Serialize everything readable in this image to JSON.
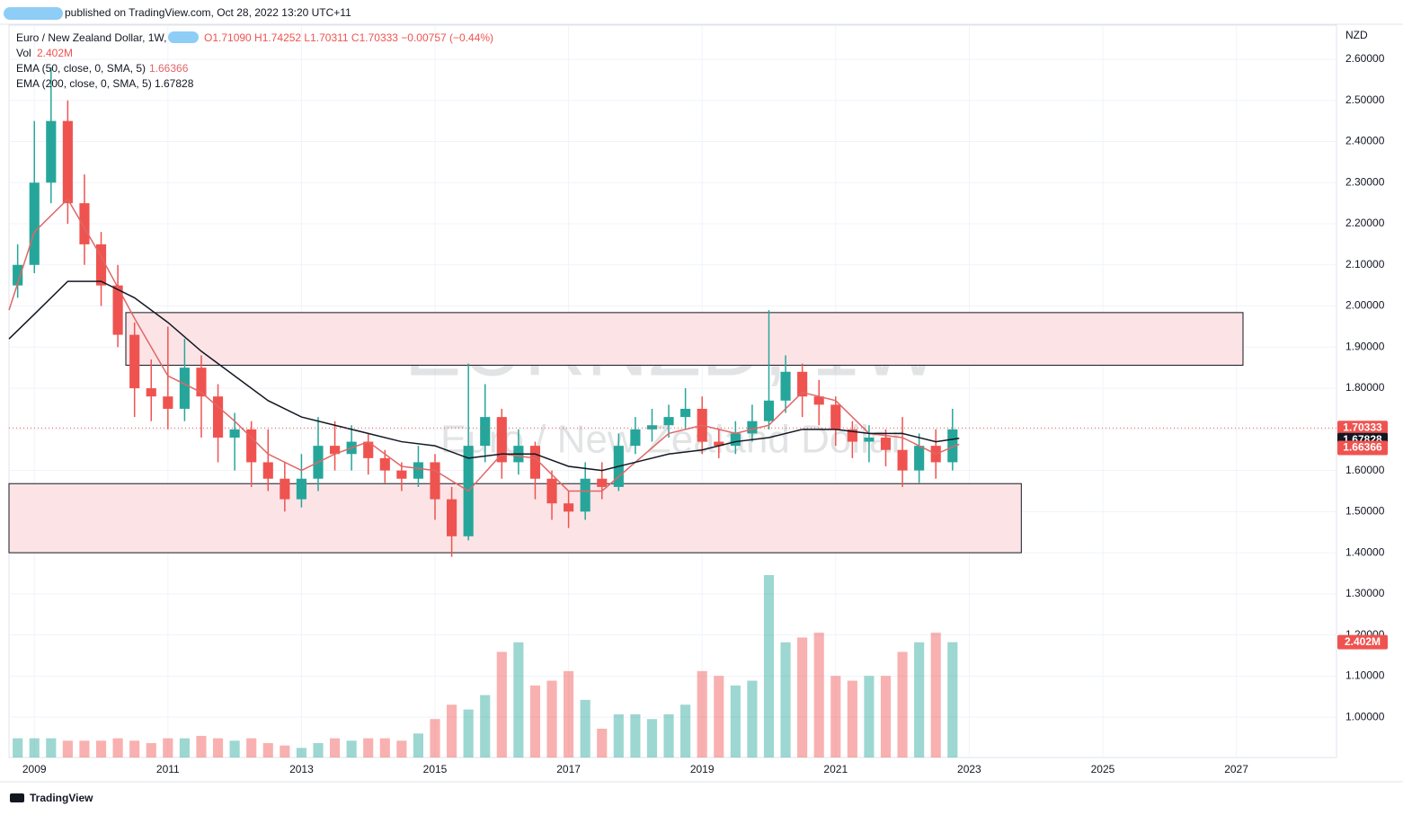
{
  "header": {
    "published": "published on TradingView.com, Oct 28, 2022 13:20 UTC+11",
    "symbol": "Euro / New Zealand Dollar, 1W,",
    "ohlc": "O1.71090 H1.74252 L1.70311 C1.70333 −0.00757 (−0.44%)",
    "vol_label": "Vol",
    "vol_value": "2.402M",
    "ema50_value": "1.66366",
    "ema200_value": "1.67828"
  },
  "watermark": {
    "symbol": "EURNZD, 1W",
    "name": "Euro / New Zealand Dollar"
  },
  "footer": "TradingView",
  "chart_data": {
    "type": "candlestick",
    "currency": "NZD",
    "up_color": "#26a69a",
    "down_color": "#ef5350",
    "x": [
      2008.75,
      2009,
      2009.25,
      2009.5,
      2009.75,
      2010,
      2010.25,
      2010.5,
      2010.75,
      2011,
      2011.25,
      2011.5,
      2011.75,
      2012,
      2012.25,
      2012.5,
      2012.75,
      2013,
      2013.25,
      2013.5,
      2013.75,
      2014,
      2014.25,
      2014.5,
      2014.75,
      2015,
      2015.25,
      2015.5,
      2015.75,
      2016,
      2016.25,
      2016.5,
      2016.75,
      2017,
      2017.25,
      2017.5,
      2017.75,
      2018,
      2018.25,
      2018.5,
      2018.75,
      2019,
      2019.25,
      2019.5,
      2019.75,
      2020,
      2020.25,
      2020.5,
      2020.75,
      2021,
      2021.25,
      2021.5,
      2021.75,
      2022,
      2022.25,
      2022.5,
      2022.75
    ],
    "open": [
      2.05,
      2.1,
      2.3,
      2.45,
      2.25,
      2.15,
      2.05,
      1.93,
      1.8,
      1.78,
      1.75,
      1.85,
      1.78,
      1.68,
      1.7,
      1.62,
      1.58,
      1.53,
      1.58,
      1.66,
      1.64,
      1.67,
      1.63,
      1.6,
      1.58,
      1.62,
      1.53,
      1.44,
      1.66,
      1.73,
      1.62,
      1.66,
      1.58,
      1.52,
      1.5,
      1.58,
      1.56,
      1.66,
      1.7,
      1.71,
      1.73,
      1.75,
      1.67,
      1.66,
      1.69,
      1.72,
      1.77,
      1.84,
      1.78,
      1.76,
      1.7,
      1.67,
      1.68,
      1.65,
      1.6,
      1.66,
      1.62
    ],
    "high": [
      2.15,
      2.45,
      2.58,
      2.5,
      2.32,
      2.18,
      2.1,
      1.96,
      1.87,
      1.95,
      1.92,
      1.88,
      1.81,
      1.74,
      1.72,
      1.7,
      1.62,
      1.64,
      1.73,
      1.72,
      1.71,
      1.69,
      1.65,
      1.62,
      1.66,
      1.64,
      1.56,
      1.86,
      1.81,
      1.75,
      1.7,
      1.67,
      1.6,
      1.55,
      1.62,
      1.62,
      1.69,
      1.73,
      1.75,
      1.76,
      1.8,
      1.78,
      1.7,
      1.72,
      1.76,
      1.99,
      1.88,
      1.86,
      1.82,
      1.78,
      1.72,
      1.71,
      1.7,
      1.73,
      1.69,
      1.7,
      1.75
    ],
    "low": [
      2.02,
      2.08,
      2.25,
      2.2,
      2.1,
      2.0,
      1.9,
      1.73,
      1.72,
      1.7,
      1.72,
      1.68,
      1.62,
      1.6,
      1.56,
      1.55,
      1.5,
      1.51,
      1.55,
      1.6,
      1.6,
      1.59,
      1.57,
      1.55,
      1.56,
      1.48,
      1.39,
      1.43,
      1.62,
      1.58,
      1.59,
      1.53,
      1.48,
      1.46,
      1.48,
      1.53,
      1.55,
      1.64,
      1.67,
      1.68,
      1.7,
      1.64,
      1.63,
      1.64,
      1.67,
      1.7,
      1.74,
      1.73,
      1.71,
      1.66,
      1.63,
      1.62,
      1.61,
      1.56,
      1.57,
      1.58,
      1.6
    ],
    "close": [
      2.1,
      2.3,
      2.45,
      2.25,
      2.15,
      2.05,
      1.93,
      1.8,
      1.78,
      1.75,
      1.85,
      1.78,
      1.68,
      1.7,
      1.62,
      1.58,
      1.53,
      1.58,
      1.66,
      1.64,
      1.67,
      1.63,
      1.6,
      1.58,
      1.62,
      1.53,
      1.44,
      1.66,
      1.73,
      1.62,
      1.66,
      1.58,
      1.52,
      1.5,
      1.58,
      1.56,
      1.66,
      1.7,
      1.71,
      1.73,
      1.75,
      1.67,
      1.66,
      1.69,
      1.72,
      1.77,
      1.84,
      1.78,
      1.76,
      1.7,
      1.67,
      1.68,
      1.65,
      1.6,
      1.66,
      1.62,
      1.7
    ],
    "series": [
      {
        "name": "EMA (50, close, 0, SMA, 5)",
        "color": "#e06666",
        "x": [
          2008.62,
          2009,
          2009.5,
          2010,
          2010.5,
          2011,
          2011.5,
          2012,
          2012.5,
          2013,
          2013.5,
          2014,
          2014.5,
          2015,
          2015.5,
          2016,
          2016.5,
          2017,
          2017.5,
          2018,
          2018.5,
          2019,
          2019.5,
          2020,
          2020.5,
          2021,
          2021.5,
          2022,
          2022.5,
          2022.85
        ],
        "values": [
          1.99,
          2.18,
          2.26,
          2.12,
          1.97,
          1.83,
          1.79,
          1.72,
          1.64,
          1.6,
          1.64,
          1.67,
          1.61,
          1.6,
          1.55,
          1.64,
          1.63,
          1.55,
          1.55,
          1.62,
          1.69,
          1.71,
          1.69,
          1.71,
          1.79,
          1.77,
          1.69,
          1.68,
          1.64,
          1.66366
        ]
      },
      {
        "name": "EMA (200, close, 0, SMA, 5)",
        "color": "#131722",
        "x": [
          2008.62,
          2009,
          2009.5,
          2010,
          2010.5,
          2011,
          2011.5,
          2012,
          2012.5,
          2013,
          2013.5,
          2014,
          2014.5,
          2015,
          2015.5,
          2016,
          2016.5,
          2017,
          2017.5,
          2018,
          2018.5,
          2019,
          2019.5,
          2020,
          2020.5,
          2021,
          2021.5,
          2022,
          2022.5,
          2022.85
        ],
        "values": [
          1.92,
          1.98,
          2.06,
          2.06,
          2.02,
          1.96,
          1.89,
          1.83,
          1.77,
          1.73,
          1.71,
          1.69,
          1.67,
          1.66,
          1.63,
          1.64,
          1.64,
          1.61,
          1.6,
          1.62,
          1.64,
          1.65,
          1.67,
          1.68,
          1.7,
          1.7,
          1.69,
          1.69,
          1.67,
          1.67828
        ]
      }
    ],
    "volume": {
      "values": [
        0.4,
        0.4,
        0.4,
        0.35,
        0.35,
        0.35,
        0.4,
        0.35,
        0.3,
        0.4,
        0.4,
        0.45,
        0.4,
        0.35,
        0.4,
        0.3,
        0.25,
        0.2,
        0.3,
        0.4,
        0.35,
        0.4,
        0.4,
        0.35,
        0.5,
        0.8,
        1.1,
        1.0,
        1.3,
        2.2,
        2.4,
        1.5,
        1.6,
        1.8,
        1.2,
        0.6,
        0.9,
        0.9,
        0.8,
        0.9,
        1.1,
        1.8,
        1.7,
        1.5,
        1.6,
        3.8,
        2.4,
        2.5,
        2.6,
        1.7,
        1.6,
        1.7,
        1.7,
        2.2,
        2.4,
        2.6,
        2.402
      ],
      "ylim": [
        0,
        3.8
      ]
    },
    "zones": [
      {
        "x": [
          2010.37,
          2027.1
        ],
        "y": [
          1.856,
          1.984
        ],
        "color": "#fce4e6"
      },
      {
        "x": [
          2008.62,
          2023.78
        ],
        "y": [
          1.4,
          1.568
        ],
        "color": "#fce4e6"
      }
    ],
    "xlim": [
      2008.62,
      2028.5
    ],
    "xticks": [
      2009,
      2011,
      2013,
      2015,
      2017,
      2019,
      2021,
      2023,
      2025,
      2027
    ],
    "ylim": [
      0.902,
      2.683
    ],
    "yticks": [
      {
        "value": 1.0,
        "label": "1.00000"
      },
      {
        "value": 1.1,
        "label": "1.10000"
      },
      {
        "value": 1.2,
        "label": "1.20000"
      },
      {
        "value": 1.3,
        "label": "1.30000"
      },
      {
        "value": 1.4,
        "label": "1.40000"
      },
      {
        "value": 1.5,
        "label": "1.50000"
      },
      {
        "value": 1.6,
        "label": "1.60000"
      },
      {
        "value": 1.7,
        "label": "1.70000"
      },
      {
        "value": 1.8,
        "label": "1.80000"
      },
      {
        "value": 1.9,
        "label": "1.90000"
      },
      {
        "value": 2.0,
        "label": "2.00000"
      },
      {
        "value": 2.1,
        "label": "2.10000"
      },
      {
        "value": 2.2,
        "label": "2.20000"
      },
      {
        "value": 2.3,
        "label": "2.30000"
      },
      {
        "value": 2.4,
        "label": "2.40000"
      },
      {
        "value": 2.5,
        "label": "2.50000"
      },
      {
        "value": 2.6,
        "label": "2.60000"
      }
    ],
    "grid": true,
    "last_price": {
      "value": 1.70333,
      "label": "1.70333",
      "color": "#ef5350"
    },
    "price_badges": [
      {
        "value": 1.67828,
        "label": "1.67828",
        "color": "#131722"
      },
      {
        "value": 1.66366,
        "label": "1.66366",
        "color": "#ef5350"
      }
    ],
    "volume_badge": {
      "value": 2.402,
      "label": "2.402M",
      "color": "#ef5350"
    }
  }
}
